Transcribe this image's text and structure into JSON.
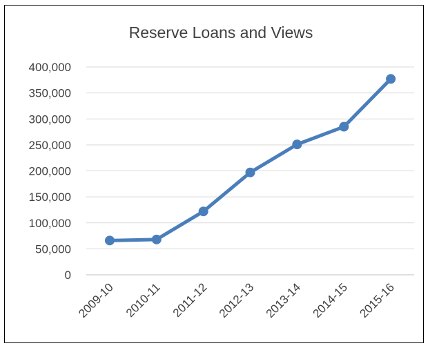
{
  "chart_data": {
    "type": "line",
    "title": "Reserve Loans and Views",
    "xlabel": "",
    "ylabel": "",
    "categories": [
      "2009-10",
      "2010-11",
      "2011-12",
      "2012-13",
      "2013-14",
      "2014-15",
      "2015-16"
    ],
    "series": [
      {
        "values": [
          66000,
          68000,
          122000,
          197000,
          251000,
          285000,
          377000
        ],
        "color": "#4a7ebb"
      }
    ],
    "ylim": [
      0,
      400000
    ],
    "yticks": [
      "0",
      "50,000",
      "100,000",
      "150,000",
      "200,000",
      "250,000",
      "300,000",
      "350,000",
      "400,000"
    ],
    "grid": true,
    "legend": "none"
  }
}
